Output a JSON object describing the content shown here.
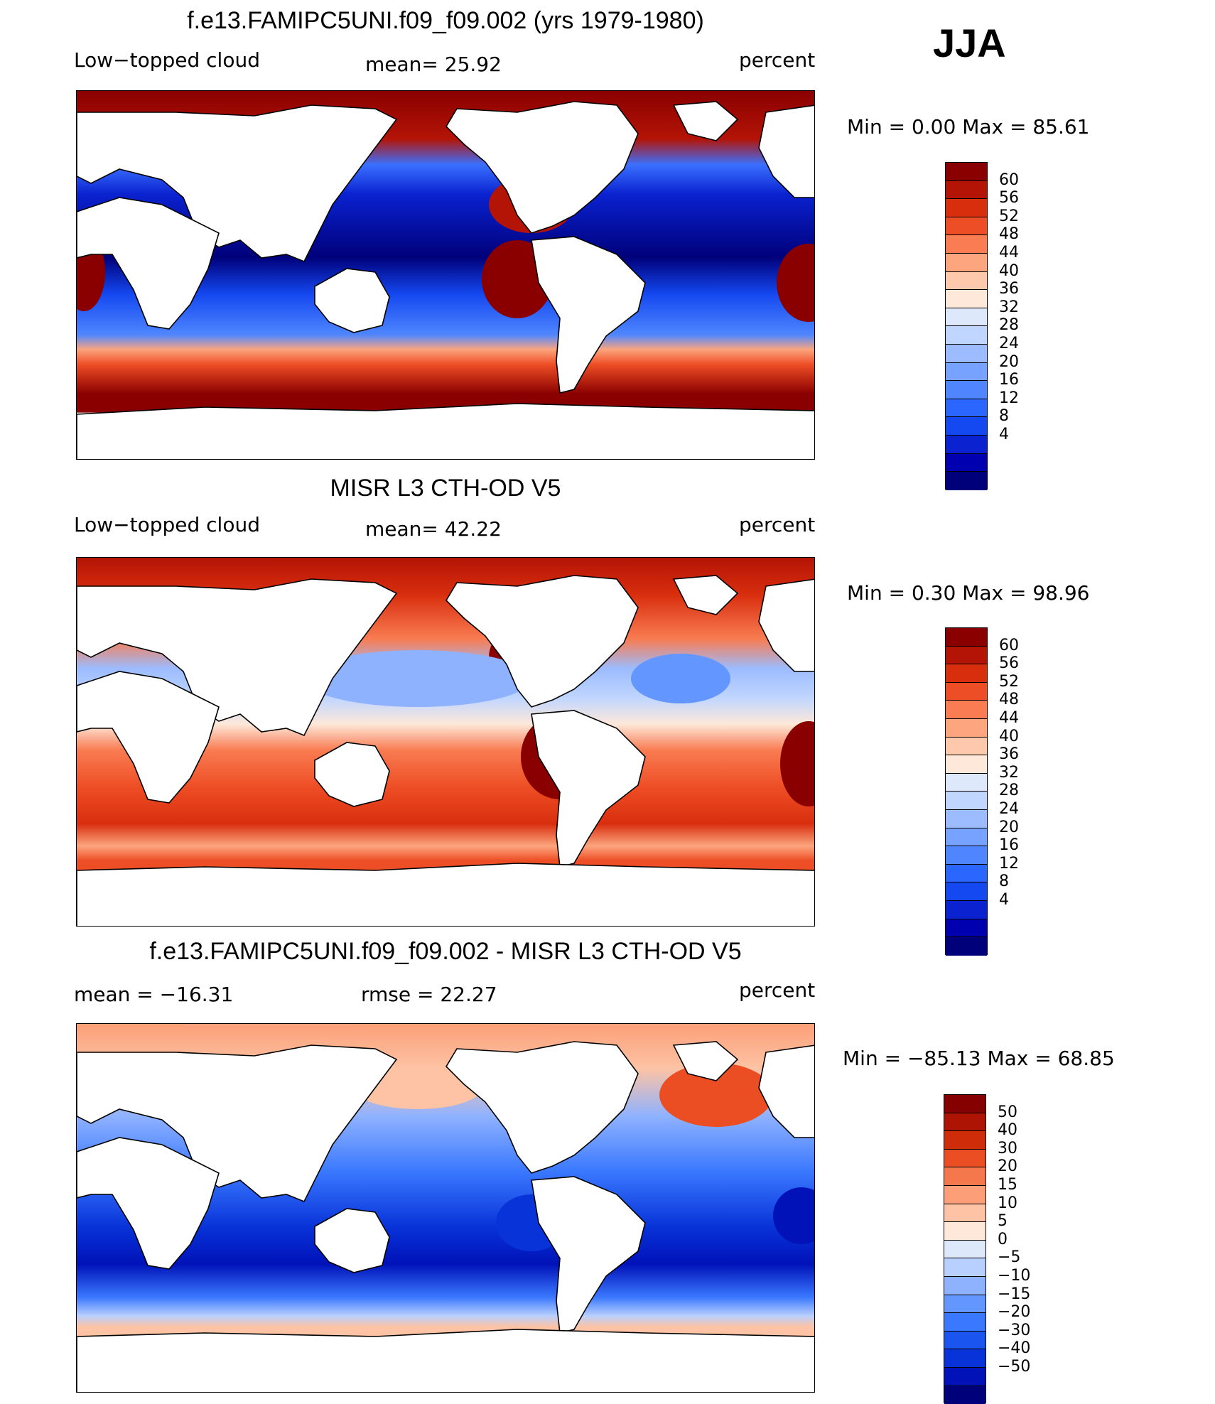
{
  "season": "JJA",
  "palette_model": [
    "#00007a",
    "#0000b0",
    "#0a22d0",
    "#1448f0",
    "#2a66ff",
    "#4f86ff",
    "#77a2ff",
    "#9cbcff",
    "#c0d6ff",
    "#dde8fb",
    "#fde8da",
    "#fdc8ab",
    "#fca57e",
    "#f97c52",
    "#ee4e25",
    "#d82e0e",
    "#b41406",
    "#8a0000"
  ],
  "palette_diff": [
    "#00007a",
    "#0012b8",
    "#0833d8",
    "#1a55f0",
    "#3a78ff",
    "#6496ff",
    "#8fb2ff",
    "#b8d0ff",
    "#dde8fb",
    "#fde8da",
    "#fdc3a4",
    "#fc9f78",
    "#f5784c",
    "#ea4e22",
    "#cf2d0a",
    "#ad1404",
    "#850000"
  ],
  "panels": [
    {
      "title": "f.e13.FAMIPC5UNI.f09_f09.002 (yrs 1979-1980)",
      "left_label": "Low−topped cloud",
      "center_label": "mean=   25.92",
      "right_label": "percent",
      "minmax": "Min  =     0.00  Max  =     85.61",
      "levels": [
        "60",
        "56",
        "52",
        "48",
        "44",
        "40",
        "36",
        "32",
        "28",
        "24",
        "20",
        "16",
        "12",
        "8",
        "4"
      ]
    },
    {
      "title": "MISR L3 CTH-OD V5",
      "left_label": "Low−topped cloud",
      "center_label": "mean=   42.22",
      "right_label": "percent",
      "minmax": "Min  =     0.30  Max  =     98.96",
      "levels": [
        "60",
        "56",
        "52",
        "48",
        "44",
        "40",
        "36",
        "32",
        "28",
        "24",
        "20",
        "16",
        "12",
        "8",
        "4"
      ]
    },
    {
      "title": "f.e13.FAMIPC5UNI.f09_f09.002 - MISR L3 CTH-OD V5",
      "left_label": "mean  =  −16.31",
      "center_label": "rmse  =    22.27",
      "right_label": "percent",
      "minmax": "Min  =  −85.13  Max  =     68.85",
      "levels": [
        "50",
        "40",
        "30",
        "20",
        "15",
        "10",
        "5",
        "0",
        "−5",
        "−10",
        "−15",
        "−20",
        "−30",
        "−40",
        "−50"
      ]
    }
  ]
}
